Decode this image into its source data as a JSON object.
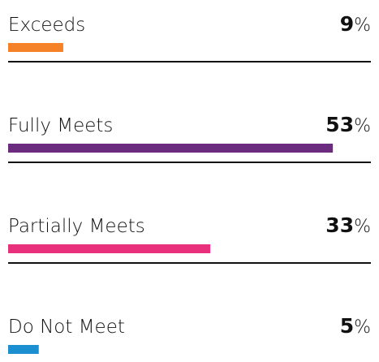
{
  "chart_data": {
    "type": "bar",
    "orientation": "horizontal",
    "categories": [
      "Exceeds",
      "Fully Meets",
      "Partially Meets",
      "Do Not Meet"
    ],
    "values": [
      9,
      53,
      33,
      5
    ],
    "unit": "%",
    "colors": [
      "#f58228",
      "#6b2c80",
      "#e8307c",
      "#1b8fd0"
    ],
    "xlim": [
      0,
      100
    ]
  }
}
